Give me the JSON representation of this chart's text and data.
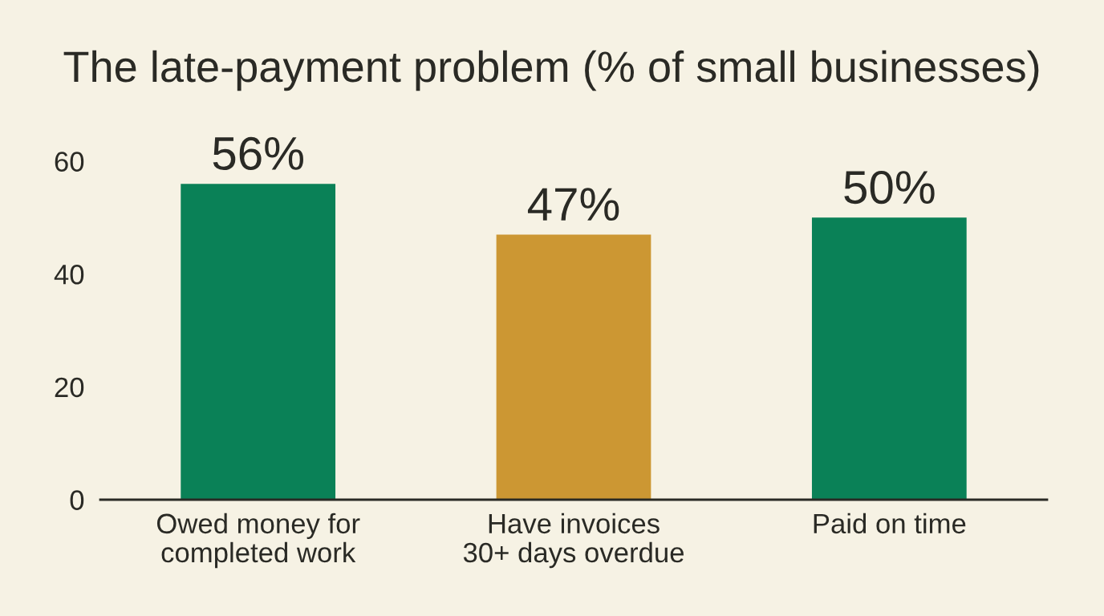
{
  "chart_data": {
    "type": "bar",
    "title": "The late-payment problem (% of small businesses)",
    "categories": [
      "Owed money for\ncompleted work",
      "Have invoices\n30+ days overdue",
      "Paid on time"
    ],
    "values": [
      56,
      47,
      50
    ],
    "colors": [
      "#0a8157",
      "#cc9733",
      "#0a8157"
    ],
    "value_labels": [
      "56%",
      "47%",
      "50%"
    ],
    "ylim": [
      0,
      60
    ],
    "yticks": [
      0,
      20,
      40,
      60
    ],
    "grid": false,
    "legend": false
  }
}
